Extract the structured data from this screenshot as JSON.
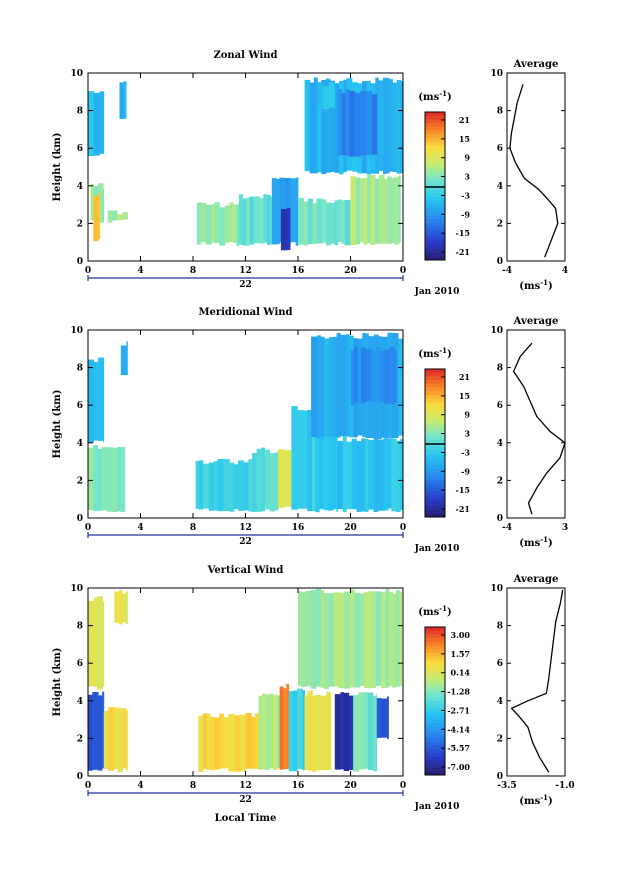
{
  "figure": {
    "date_label": "Jan 2010",
    "day_label": "22",
    "common_xlabel": "Local Time"
  },
  "chart_data": [
    {
      "type": "heatmap",
      "title": "Zonal Wind",
      "ylabel": "Height (km)",
      "xlabel": "",
      "xlim": [
        0,
        24
      ],
      "ylim": [
        0,
        10
      ],
      "x_ticks": [
        "0",
        "4",
        "8",
        "12",
        "16",
        "20",
        "0"
      ],
      "y_ticks": [
        "0",
        "2",
        "4",
        "6",
        "8",
        "10"
      ],
      "colorbar": {
        "unit": "(ms-1)",
        "ticks": [
          "21",
          "15",
          "9",
          "3",
          "-3",
          "-9",
          "-15",
          "-21"
        ],
        "range": [
          -24,
          24
        ]
      },
      "regions": [
        {
          "x": [
            0,
            1.2
          ],
          "y": [
            5.5,
            8.9
          ],
          "value": -5
        },
        {
          "x": [
            2.4,
            2.9
          ],
          "y": [
            7.5,
            9.5
          ],
          "value": -6
        },
        {
          "x": [
            0.2,
            1.2
          ],
          "y": [
            2.0,
            4.0
          ],
          "value": 4
        },
        {
          "x": [
            0.4,
            0.9
          ],
          "y": [
            1.0,
            3.6
          ],
          "value": 14
        },
        {
          "x": [
            1.5,
            3.0
          ],
          "y": [
            2.0,
            2.6
          ],
          "value": 5
        },
        {
          "x": [
            8.3,
            11.5
          ],
          "y": [
            0.8,
            3.0
          ],
          "value": 4
        },
        {
          "x": [
            11.5,
            14.0
          ],
          "y": [
            0.8,
            3.4
          ],
          "value": 1
        },
        {
          "x": [
            14.0,
            16.0
          ],
          "y": [
            0.8,
            4.4
          ],
          "value": -9
        },
        {
          "x": [
            14.7,
            15.4
          ],
          "y": [
            0.5,
            2.8
          ],
          "value": -20
        },
        {
          "x": [
            16.0,
            20.0
          ],
          "y": [
            0.8,
            3.2
          ],
          "value": 2
        },
        {
          "x": [
            20.0,
            23.8
          ],
          "y": [
            0.8,
            4.5
          ],
          "value": 5
        },
        {
          "x": [
            16.5,
            24.0
          ],
          "y": [
            4.6,
            9.6
          ],
          "value": -6
        },
        {
          "x": [
            19.0,
            22.0
          ],
          "y": [
            5.5,
            9.0
          ],
          "value": -11
        },
        {
          "x": [
            17.5,
            18.8
          ],
          "y": [
            8.0,
            9.4
          ],
          "value": -4
        }
      ],
      "average_profile": {
        "title": "Average",
        "xlabel": "(ms-1)",
        "x_ticks": [
          "-4",
          "4"
        ],
        "xlim": [
          -4,
          4
        ],
        "height": [
          0.2,
          1.0,
          2.0,
          2.8,
          3.3,
          3.8,
          4.4,
          5.2,
          6.0,
          6.8,
          7.6,
          8.4,
          9.4
        ],
        "value": [
          1.2,
          2.0,
          3.0,
          2.7,
          1.6,
          0.4,
          -1.6,
          -2.8,
          -3.6,
          -3.4,
          -3.0,
          -2.6,
          -1.8
        ]
      }
    },
    {
      "type": "heatmap",
      "title": "Meridional Wind",
      "ylabel": "Height (km)",
      "xlabel": "",
      "xlim": [
        0,
        24
      ],
      "ylim": [
        0,
        10
      ],
      "x_ticks": [
        "0",
        "4",
        "8",
        "12",
        "16",
        "20",
        "0"
      ],
      "y_ticks": [
        "0",
        "2",
        "4",
        "6",
        "8",
        "10"
      ],
      "colorbar": {
        "unit": "(ms-1)",
        "ticks": [
          "21",
          "15",
          "9",
          "3",
          "-3",
          "-9",
          "-15",
          "-21"
        ],
        "range": [
          -24,
          24
        ]
      },
      "regions": [
        {
          "x": [
            0,
            1.2
          ],
          "y": [
            4.0,
            8.4
          ],
          "value": -5
        },
        {
          "x": [
            2.5,
            3.0
          ],
          "y": [
            7.6,
            9.3
          ],
          "value": -6
        },
        {
          "x": [
            0,
            2.8
          ],
          "y": [
            0.3,
            3.8
          ],
          "value": 3
        },
        {
          "x": [
            8.2,
            12.5
          ],
          "y": [
            0.3,
            3.0
          ],
          "value": -2
        },
        {
          "x": [
            12.5,
            14.5
          ],
          "y": [
            0.3,
            3.6
          ],
          "value": 0
        },
        {
          "x": [
            14.5,
            15.5
          ],
          "y": [
            0.5,
            3.5
          ],
          "value": 10
        },
        {
          "x": [
            15.5,
            19.0
          ],
          "y": [
            0.3,
            5.8
          ],
          "value": -3
        },
        {
          "x": [
            19.0,
            24.0
          ],
          "y": [
            0.3,
            4.2
          ],
          "value": -4
        },
        {
          "x": [
            17.0,
            24.0
          ],
          "y": [
            4.2,
            9.7
          ],
          "value": -7
        },
        {
          "x": [
            20.0,
            23.5
          ],
          "y": [
            6.0,
            9.0
          ],
          "value": -10
        }
      ],
      "average_profile": {
        "title": "Average",
        "xlabel": "(ms-1)",
        "x_ticks": [
          "-4",
          "3"
        ],
        "xlim": [
          -4,
          3
        ],
        "height": [
          0.2,
          0.8,
          1.6,
          2.4,
          3.2,
          4.0,
          4.6,
          5.4,
          6.2,
          7.0,
          7.8,
          8.6,
          9.3
        ],
        "value": [
          -1.0,
          -1.4,
          -0.4,
          0.8,
          2.4,
          3.0,
          1.2,
          -0.4,
          -1.2,
          -2.0,
          -3.2,
          -2.4,
          -1.0
        ]
      }
    },
    {
      "type": "heatmap",
      "title": "Vertical Wind",
      "ylabel": "Height (km)",
      "xlabel": "Local Time",
      "xlim": [
        0,
        24
      ],
      "ylim": [
        0,
        10
      ],
      "x_ticks": [
        "0",
        "4",
        "8",
        "12",
        "16",
        "20",
        "0"
      ],
      "y_ticks": [
        "0",
        "2",
        "4",
        "6",
        "8",
        "10"
      ],
      "colorbar": {
        "unit": "(ms-1)",
        "ticks": [
          "3.00",
          "1.57",
          "0.14",
          "-1.28",
          "-2.71",
          "-4.14",
          "-5.57",
          "-7.00"
        ],
        "range": [
          -8,
          4
        ]
      },
      "regions": [
        {
          "x": [
            0,
            1.2
          ],
          "y": [
            4.6,
            9.4
          ],
          "value": 0.2
        },
        {
          "x": [
            2.0,
            3.0
          ],
          "y": [
            8.0,
            9.8
          ],
          "value": 0.5
        },
        {
          "x": [
            0,
            1.2
          ],
          "y": [
            0.2,
            4.4
          ],
          "value": -6.0
        },
        {
          "x": [
            1.2,
            3.0
          ],
          "y": [
            0.2,
            3.6
          ],
          "value": 0.9
        },
        {
          "x": [
            8.4,
            13.0
          ],
          "y": [
            0.2,
            3.2
          ],
          "value": 1.1
        },
        {
          "x": [
            13.0,
            14.6
          ],
          "y": [
            0.2,
            4.4
          ],
          "value": -0.5
        },
        {
          "x": [
            14.6,
            15.3
          ],
          "y": [
            0.2,
            4.8
          ],
          "value": 2.8
        },
        {
          "x": [
            15.3,
            16.5
          ],
          "y": [
            0.2,
            4.6
          ],
          "value": -2.6
        },
        {
          "x": [
            16.5,
            18.5
          ],
          "y": [
            0.2,
            4.4
          ],
          "value": 0.6
        },
        {
          "x": [
            18.8,
            20.2
          ],
          "y": [
            0.2,
            4.4
          ],
          "value": -7.0
        },
        {
          "x": [
            20.2,
            22.0
          ],
          "y": [
            0.2,
            4.4
          ],
          "value": -1.5
        },
        {
          "x": [
            22.0,
            22.9
          ],
          "y": [
            1.9,
            4.2
          ],
          "value": -6.0
        },
        {
          "x": [
            16.0,
            23.9
          ],
          "y": [
            4.6,
            9.8
          ],
          "value": -0.8
        }
      ],
      "average_profile": {
        "title": "Average",
        "xlabel": "(ms-1)",
        "x_ticks": [
          "-3.5",
          "-1.0"
        ],
        "xlim": [
          -3.5,
          -1.0
        ],
        "height": [
          0.2,
          1.0,
          1.8,
          2.6,
          3.2,
          3.6,
          4.0,
          4.4,
          5.2,
          6.2,
          7.2,
          8.2,
          9.2,
          9.9
        ],
        "value": [
          -1.7,
          -2.1,
          -2.4,
          -2.6,
          -3.0,
          -3.3,
          -2.6,
          -1.8,
          -1.7,
          -1.6,
          -1.5,
          -1.4,
          -1.2,
          -1.1
        ]
      }
    }
  ]
}
